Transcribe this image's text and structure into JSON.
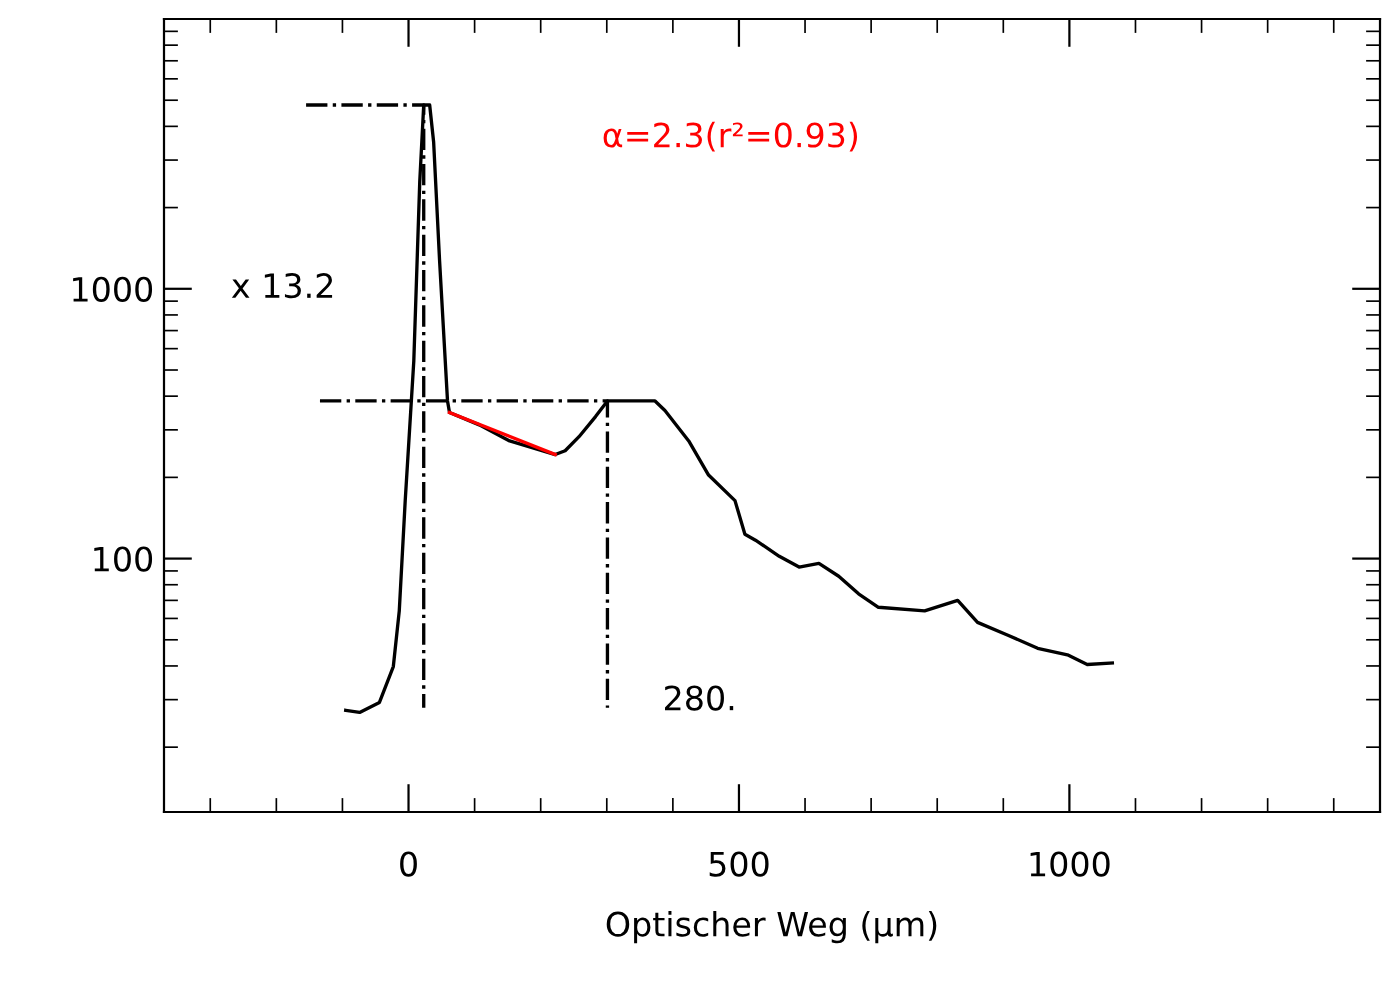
{
  "chart_data": {
    "type": "line",
    "xlabel": "Optischer Weg (µm)",
    "xlim": [
      -370,
      1470
    ],
    "xticks": [
      0,
      500,
      1000
    ],
    "ylim": [
      11.5,
      10000
    ],
    "yticks": [
      100,
      1000
    ],
    "log": "y",
    "grid": false,
    "marker": "none",
    "series": [
      {
        "color": "#000000",
        "line_style": "solid",
        "x": [
          -95,
          -74,
          -44,
          -23,
          -14,
          -5,
          8,
          17,
          23,
          32,
          38,
          47,
          59,
          62,
          107,
          153,
          222,
          237,
          258,
          283,
          301,
          373,
          388,
          424,
          454,
          494,
          509,
          525,
          561,
          591,
          621,
          651,
          681,
          711,
          781,
          831,
          861,
          907,
          952,
          997,
          1027,
          1065
        ],
        "values": [
          27.4,
          26.9,
          29.3,
          39.8,
          64,
          164,
          541,
          2500,
          4800,
          4800,
          3500,
          1270,
          384,
          348,
          313,
          273,
          243,
          251,
          283,
          336,
          384,
          384,
          354,
          273,
          204,
          164,
          123,
          117,
          102,
          93,
          96,
          86,
          74,
          66,
          64,
          70,
          58,
          52,
          46.5,
          44,
          40.5,
          41
        ]
      },
      {
        "color": "#ff0000",
        "line_style": "solid",
        "x": [
          62,
          222
        ],
        "values": [
          348,
          243
        ]
      },
      {
        "color": "#000000",
        "line_style": "dashdot",
        "x": [
          -155,
          23,
          23
        ],
        "values": [
          4800,
          4800,
          28
        ]
      },
      {
        "color": "#000000",
        "line_style": "dashdot",
        "x": [
          -134,
          301,
          301
        ],
        "values": [
          384,
          384,
          28
        ]
      }
    ],
    "annotations": [
      "x 13.2",
      "280.",
      "α=2.3(r²=0.93)"
    ]
  }
}
